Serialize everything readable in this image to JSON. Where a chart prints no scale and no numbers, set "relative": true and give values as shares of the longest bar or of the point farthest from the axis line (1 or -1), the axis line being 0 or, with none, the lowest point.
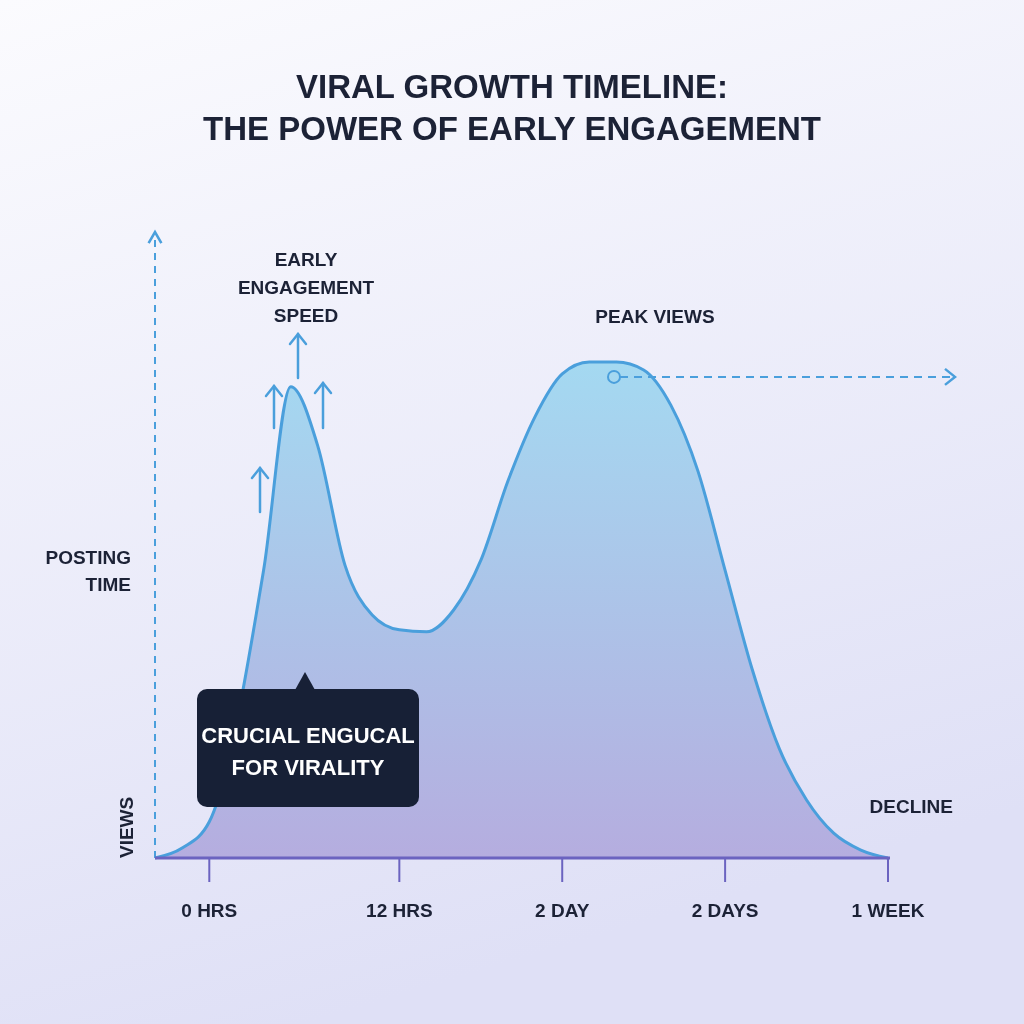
{
  "chart_data": {
    "type": "area",
    "title": "VIRAL GROWTH TIMELINE:\nTHE POWER OF EARLY ENGAGEMENT",
    "ylabel": "VIEWS",
    "relative": true,
    "categories": [
      null,
      null,
      "0 HRS",
      null,
      null,
      null,
      null,
      null,
      null,
      "12 HRS",
      null,
      null,
      null,
      null,
      null,
      "2 DAY",
      null,
      null,
      null,
      null,
      null,
      "2 DAYS",
      null,
      null,
      null,
      null,
      null,
      "1 WEEK"
    ],
    "series": [
      {
        "color": "#4a9fdc",
        "values": [
          0,
          0.02,
          0.073,
          null,
          0.58,
          0.95,
          0.83,
          0.59,
          0.49,
          0.46,
          0.456,
          0.5,
          0.6,
          0.76,
          0.89,
          0.976,
          1.0,
          1.0,
          0.984,
          0.913,
          0.78,
          0.58,
          0.38,
          0.22,
          0.117,
          0.05,
          0.016,
          0
        ]
      }
    ],
    "annotations": [
      "POSTING TIME",
      "EARLY ENGAGEMENT SPEED",
      "PEAK VIEWS",
      "DECLINE",
      "CRUCIAL ENGUCAL FOR VIRALITY"
    ],
    "ref_lines": [
      {
        "axis": "y",
        "value": 0.97,
        "color": "#4a9fdc",
        "line_style": "dashed"
      }
    ],
    "marker": "none"
  }
}
